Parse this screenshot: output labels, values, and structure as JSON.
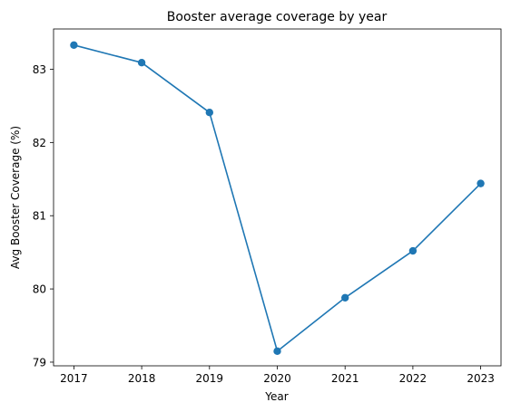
{
  "chart_data": {
    "type": "line",
    "title": "Booster average coverage by year",
    "xlabel": "Year",
    "ylabel": "Avg Booster Coverage (%)",
    "x": [
      2017,
      2018,
      2019,
      2020,
      2021,
      2022,
      2023
    ],
    "x_tick_labels": [
      "2017",
      "2018",
      "2019",
      "2020",
      "2021",
      "2022",
      "2023"
    ],
    "y_ticks": [
      79,
      80,
      81,
      82,
      83
    ],
    "y_tick_labels": [
      "79",
      "80",
      "81",
      "82",
      "83"
    ],
    "xlim": [
      2016.7,
      2023.3
    ],
    "ylim": [
      78.95,
      83.55
    ],
    "grid": false,
    "series": [
      {
        "values": [
          83.33,
          83.09,
          82.41,
          79.15,
          79.88,
          80.52,
          81.44
        ],
        "color": "#1f77b4",
        "marker": "circle"
      }
    ]
  }
}
